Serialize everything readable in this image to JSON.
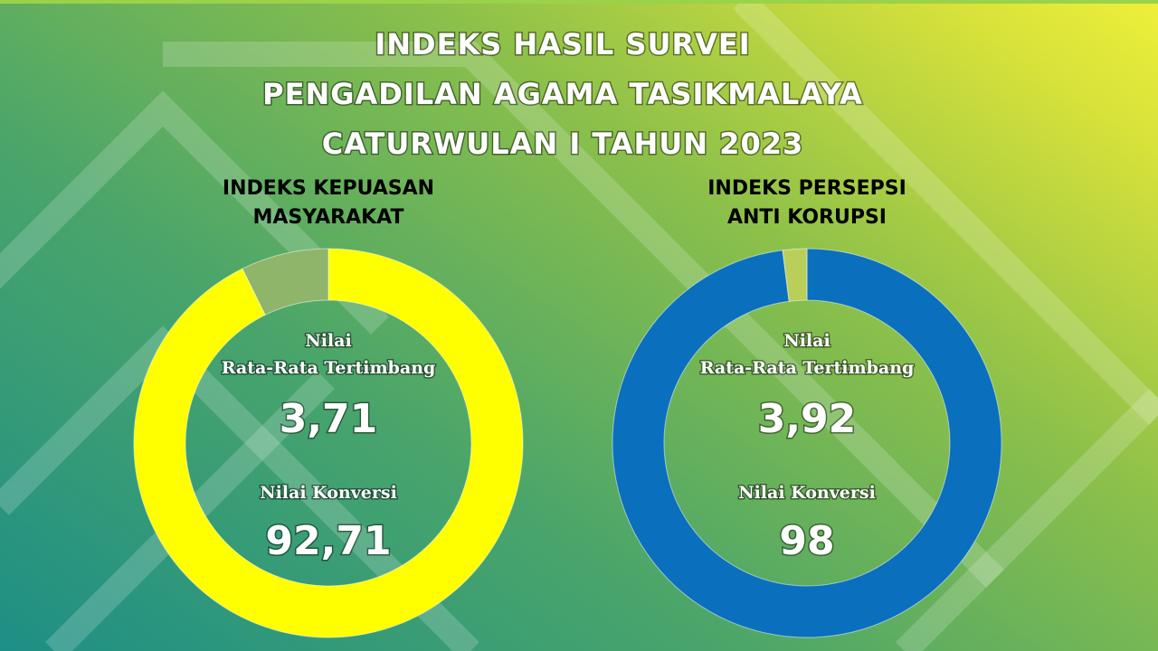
{
  "header": {
    "title_lines": [
      "INDEKS HASIL SURVEI",
      "PENGADILAN AGAMA TASIKMALAYA",
      "CATURWULAN I TAHUN 2023"
    ]
  },
  "chart_data": [
    {
      "type": "donut",
      "title": "INDEKS KEPUASAN MASYARAKAT",
      "center_caption": [
        "Nilai",
        "Rata-Rata Tertimbang"
      ],
      "average": {
        "value": 3.71,
        "label": "3,71"
      },
      "value_caption": "Nilai Konversi",
      "values": [
        92.71,
        7.29
      ],
      "value_labels": [
        "92,71",
        null
      ],
      "colors": [
        "#ffff00",
        "#8fb56a"
      ]
    },
    {
      "type": "donut",
      "title": "INDEKS PERSEPSI ANTI KORUPSI",
      "center_caption": [
        "Nilai",
        "Rata-Rata Tertimbang"
      ],
      "average": {
        "value": 3.92,
        "label": "3,92"
      },
      "value_caption": "Nilai Konversi",
      "values": [
        98,
        2
      ],
      "colors": [
        "#0a6fbd",
        "#b9cf5a"
      ]
    }
  ]
}
